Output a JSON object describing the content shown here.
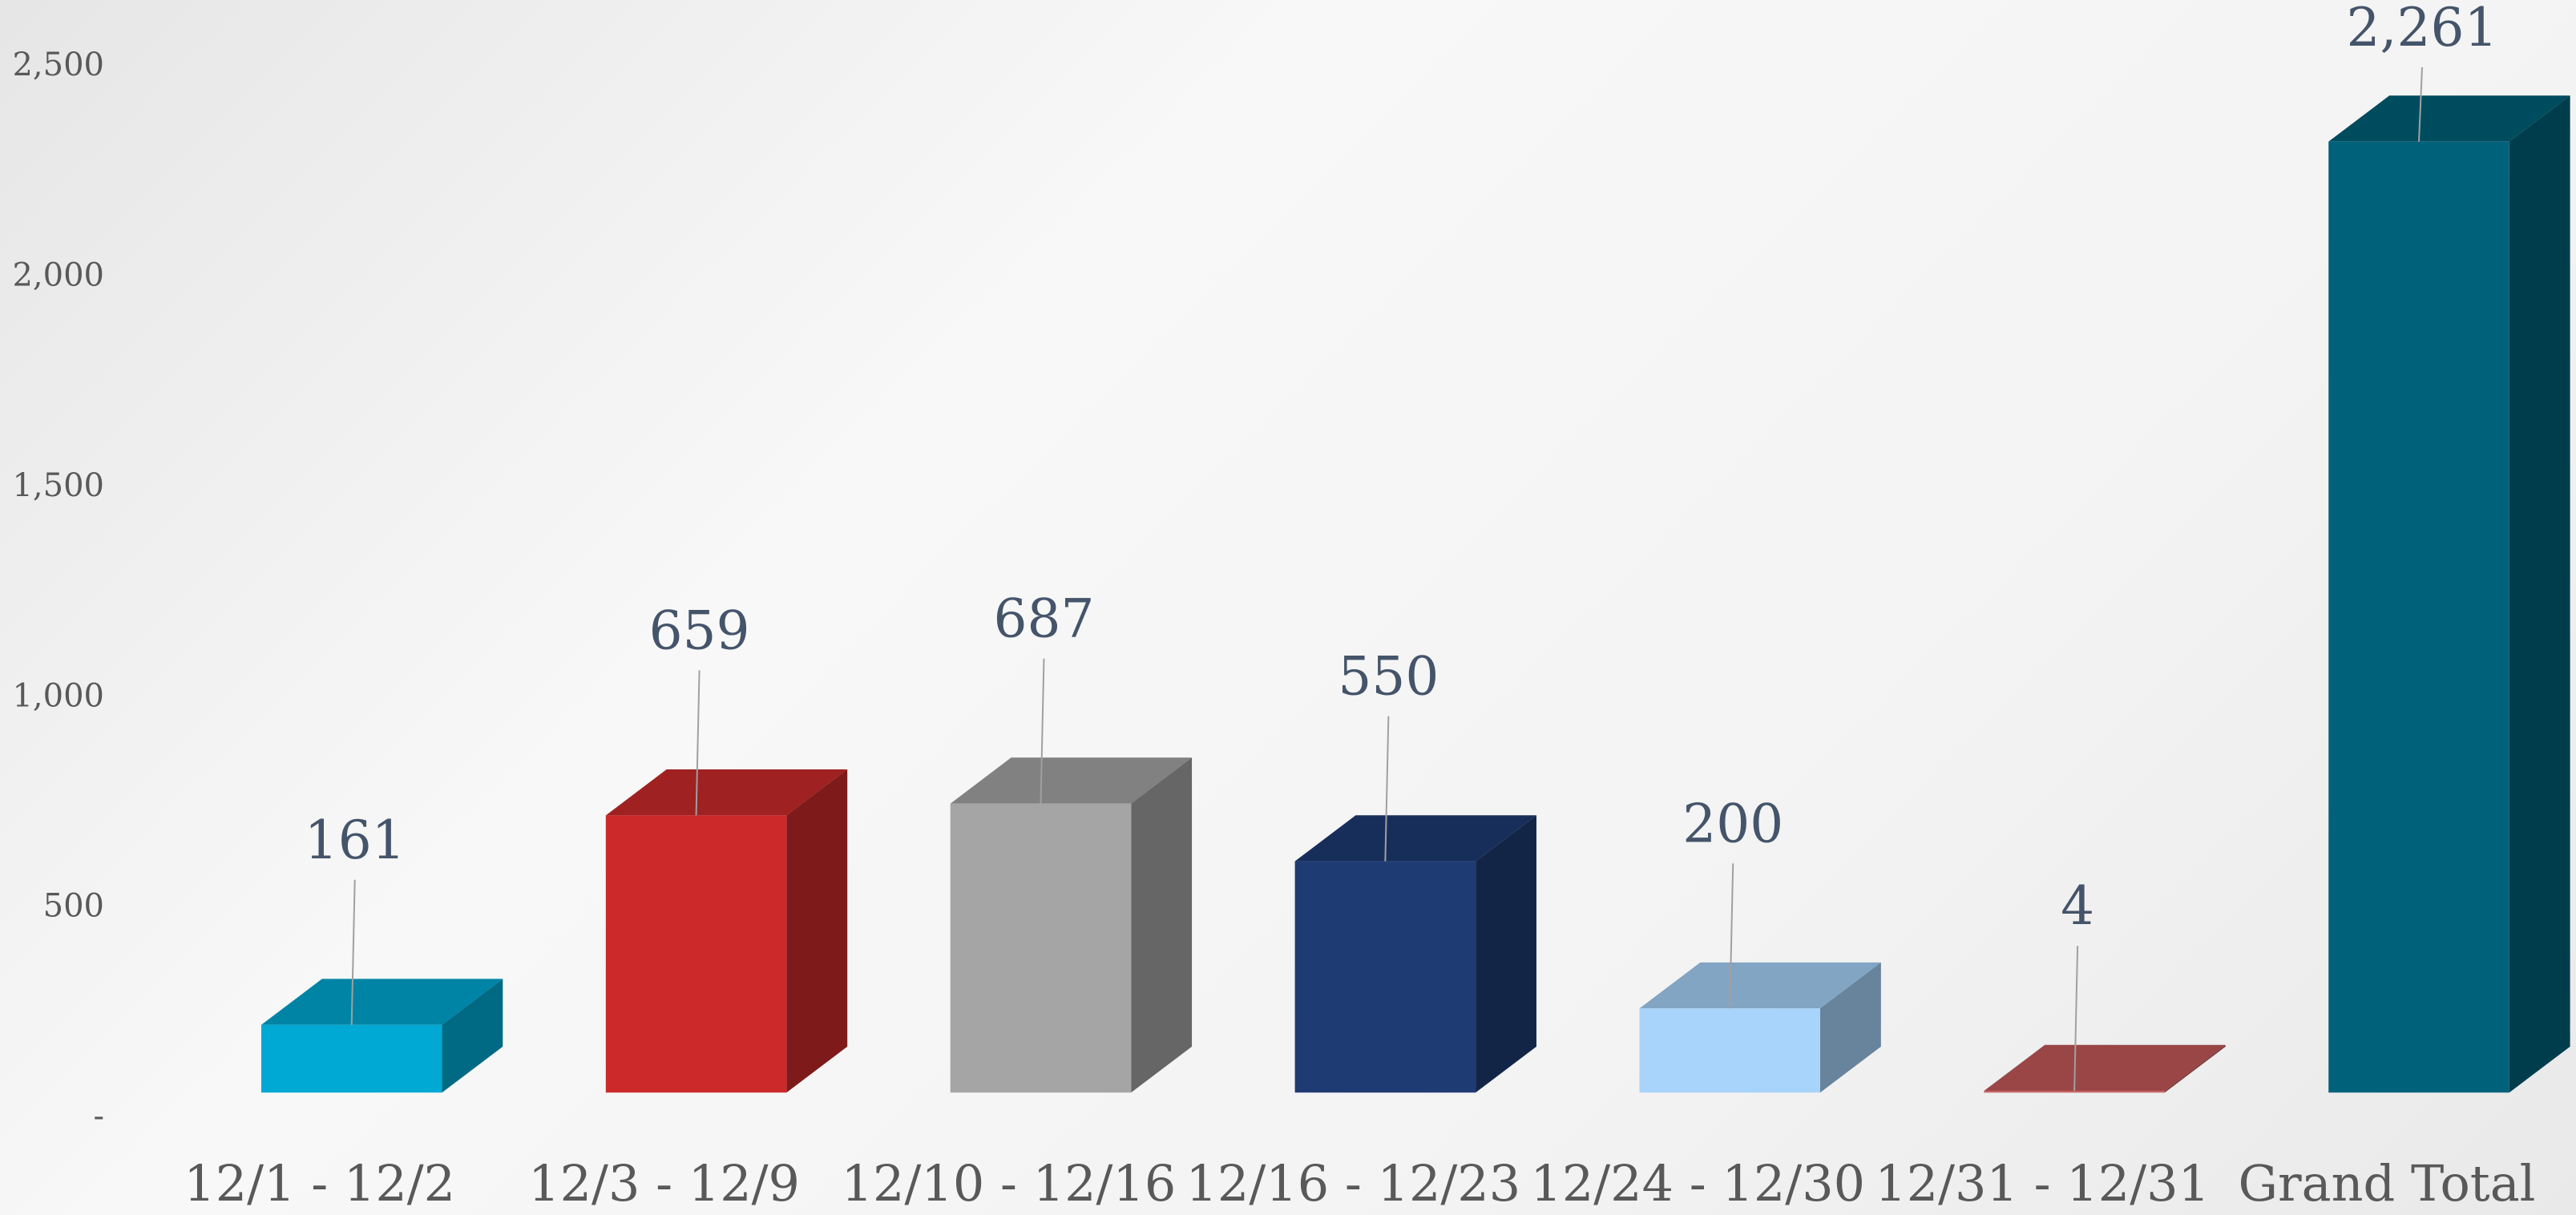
{
  "chart_data": {
    "type": "bar",
    "categories": [
      "12/1 - 12/2",
      "12/3 - 12/9",
      "12/10 - 12/16",
      "12/16 - 12/23",
      "12/24 - 12/30",
      "12/31 - 12/31",
      "Grand Total"
    ],
    "values": [
      161,
      659,
      687,
      550,
      200,
      4,
      2261
    ],
    "value_labels": [
      "161",
      "659",
      "687",
      "550",
      "200",
      "4",
      "2,261"
    ],
    "colors": [
      "#00a9d4",
      "#cc2a2a",
      "#a5a5a5",
      "#1f3b73",
      "#a8d4fb",
      "#c55a5a",
      "#00627a"
    ],
    "ylim": [
      0,
      2500
    ],
    "yticks": [
      {
        "value": 0,
        "label": "-"
      },
      500,
      {
        "value": 1000,
        "label": "1,000"
      },
      {
        "value": 1500,
        "label": "1,500"
      },
      {
        "value": 2000,
        "label": "2,000"
      },
      {
        "value": 2500,
        "label": "2,500"
      }
    ],
    "grid": false
  }
}
